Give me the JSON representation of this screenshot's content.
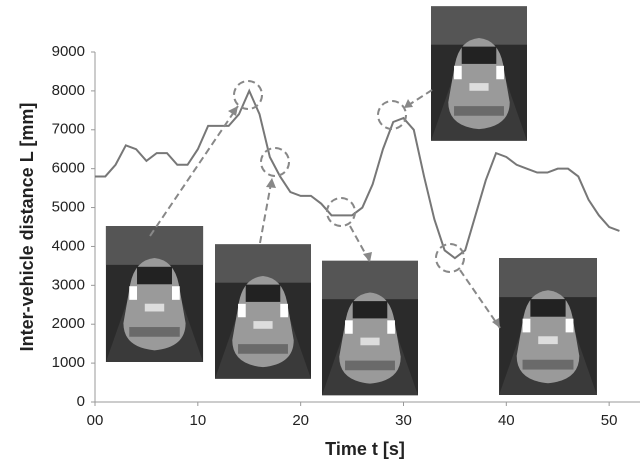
{
  "chart_data": {
    "type": "line",
    "x_label": "Time t [s]",
    "y_label": "Inter-vehicle distance L [mm]",
    "x": [
      0,
      1,
      2,
      3,
      4,
      5,
      6,
      7,
      8,
      9,
      10,
      11,
      12,
      13,
      14,
      15,
      16,
      17,
      18,
      19,
      20,
      21,
      22,
      23,
      24,
      25,
      26,
      27,
      28,
      29,
      30,
      31,
      32,
      33,
      34,
      35,
      36,
      37,
      38,
      39,
      40,
      41,
      42,
      43,
      44,
      45,
      46,
      47,
      48,
      49,
      50,
      51
    ],
    "series": [
      {
        "color": "#777777",
        "values": [
          5800,
          5800,
          6100,
          6600,
          6500,
          6200,
          6400,
          6400,
          6100,
          6100,
          6500,
          7100,
          7100,
          7100,
          7400,
          8000,
          7400,
          6300,
          5800,
          5400,
          5300,
          5300,
          5100,
          4800,
          4800,
          4800,
          5000,
          5600,
          6500,
          7200,
          7300,
          7000,
          5800,
          4700,
          3900,
          3700,
          3900,
          4800,
          5700,
          6400,
          6300,
          6100,
          6000,
          5900,
          5900,
          6000,
          6000,
          5800,
          5200,
          4800,
          4500,
          4400
        ]
      }
    ],
    "xlim": [
      0,
      53
    ],
    "xticks": [
      {
        "value": 0,
        "label": "00"
      },
      10,
      20,
      30,
      40,
      50
    ],
    "ylim": [
      0,
      9000
    ],
    "yticks": [
      0,
      1000,
      2000,
      3000,
      4000,
      5000,
      6000,
      7000,
      8000,
      9000
    ]
  }
}
